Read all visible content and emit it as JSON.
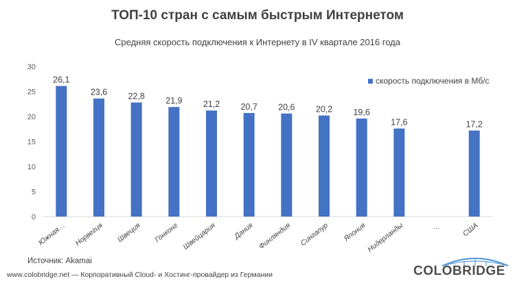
{
  "chart_data": {
    "type": "bar",
    "title": "ТОП-10 стран с самым быстрым Интернетом",
    "subtitle": "Средняя скорость подключения к Интернету в IV квартале 2016 года",
    "categories": [
      "Южная…",
      "Норвегия",
      "Швеция",
      "Гонконг",
      "Швейцария",
      "Дания",
      "Финляндия",
      "Сингапур",
      "Япония",
      "Нидерланды",
      "…",
      "США"
    ],
    "series": [
      {
        "name": "скорость подключения в Мб/с",
        "values": [
          26.1,
          23.6,
          22.8,
          21.9,
          21.2,
          20.7,
          20.6,
          20.2,
          19.6,
          17.6,
          null,
          17.2
        ],
        "labels": [
          "26,1",
          "23,6",
          "22,8",
          "21,9",
          "21,2",
          "20,7",
          "20,6",
          "20,2",
          "19,6",
          "17,6",
          "",
          "17,2"
        ]
      }
    ],
    "ylim": [
      0,
      30
    ],
    "yticks": [
      0,
      5,
      10,
      15,
      20,
      25,
      30
    ],
    "grid": false,
    "legend": "top-right",
    "color": "#4472C4"
  },
  "source": "Источник: Akamai",
  "footer": "www.colobridge.net — Корпоративный Cloud- и Хостинг-провайдер из Германии",
  "logo": {
    "text": "COLOBRIDGE"
  }
}
